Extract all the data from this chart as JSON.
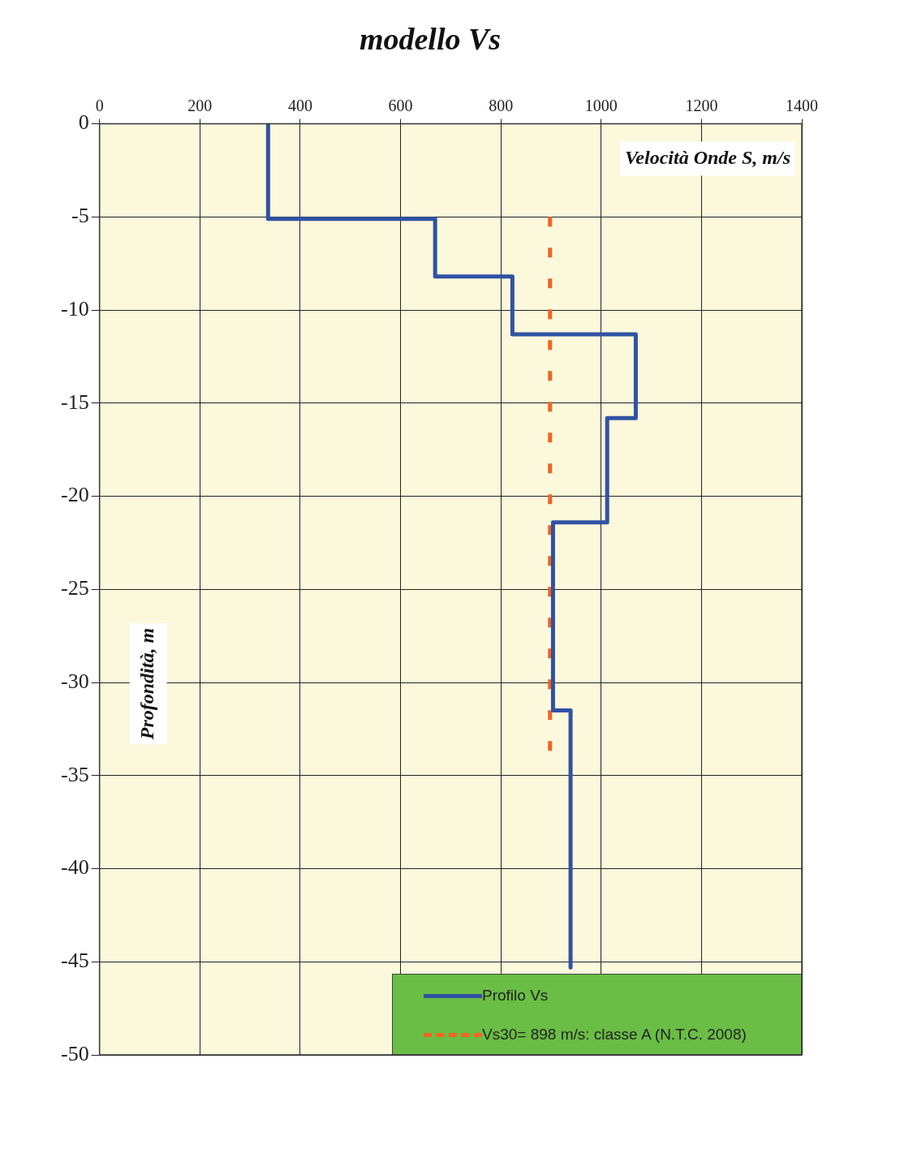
{
  "chart_data": {
    "type": "line",
    "title": "modello Vs",
    "xlabel": "Velocità Onde S, m/s",
    "ylabel": "Profondità, m",
    "series": [
      {
        "name": "Profilo Vs",
        "color": "#3152a3",
        "line_style": "solid",
        "x": [
          336,
          336,
          669,
          669,
          823,
          823,
          1069,
          1069,
          1012,
          1012,
          904,
          904,
          939,
          939
        ],
        "values": [
          0,
          -5.1,
          -5.1,
          -8.2,
          -8.2,
          -11.3,
          -11.3,
          -15.8,
          -15.8,
          -21.4,
          -21.4,
          -31.5,
          -31.5,
          -45.3
        ]
      },
      {
        "name": "Vs30= 898 m/s: classe A  (N.T.C. 2008)",
        "color": "#f26522",
        "line_style": "dashed",
        "x": [
          898,
          898
        ],
        "values": [
          -5,
          -34
        ]
      }
    ],
    "xlim": [
      0,
      1400
    ],
    "xticks": [
      0,
      200,
      400,
      600,
      800,
      1000,
      1200,
      1400
    ],
    "ylim": [
      -50,
      0
    ],
    "yticks": [
      0,
      -5,
      -10,
      -15,
      -20,
      -25,
      -30,
      -35,
      -40,
      -45,
      -50
    ],
    "grid": true,
    "legend": "bottom right",
    "marker": "none"
  }
}
